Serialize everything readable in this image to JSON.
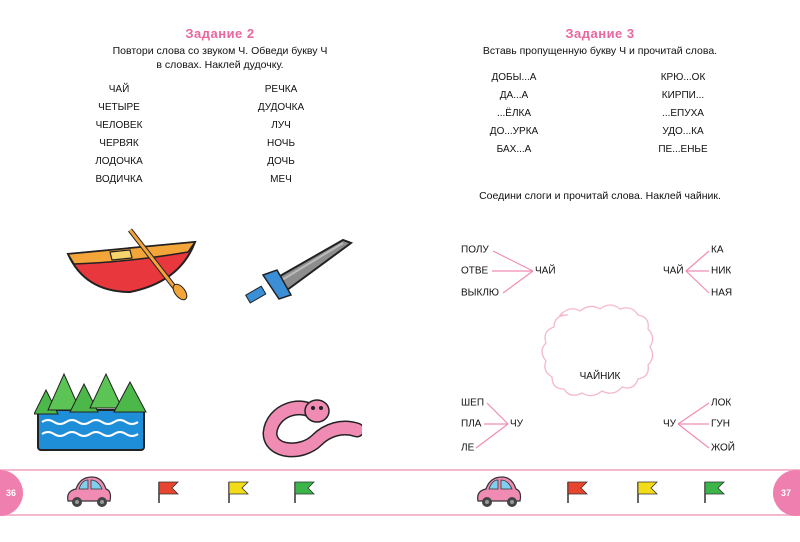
{
  "left_page": {
    "title": "Задание 2",
    "instruction_line1": "Повтори слова со звуком Ч. Обведи букву Ч",
    "instruction_line2": "в словах. Наклей дудочку.",
    "words_left": [
      "ЧАЙ",
      "ЧЕТЫРЕ",
      "ЧЕЛОВЕК",
      "ЧЕРВЯК",
      "ЛОДОЧКА",
      "ВОДИЧКА"
    ],
    "words_right": [
      "РЕЧКА",
      "ДУДОЧКА",
      "ЛУЧ",
      "НОЧЬ",
      "ДОЧЬ",
      "МЕЧ"
    ],
    "page_number": "36"
  },
  "right_page": {
    "title": "Задание 3",
    "instruction": "Вставь пропущенную букву Ч и прочитай слова.",
    "words_left": [
      "ДОБЫ...А",
      "ДА...А",
      "...ЁЛКА",
      "ДО...УРКА",
      "БАХ...А"
    ],
    "words_right": [
      "КРЮ...ОК",
      "КИРПИ...",
      "...ЕПУХА",
      "УДО...КА",
      "ПЕ...ЕНЬЕ"
    ],
    "instruction2": "Соедини слоги и прочитай слова. Наклей чайник.",
    "group1": {
      "parts": [
        "ПОЛУ",
        "ОТВЕ",
        "ВЫКЛЮ"
      ],
      "hub": "ЧАЙ"
    },
    "group2": {
      "hub": "ЧАЙ",
      "parts": [
        "КА",
        "НИК",
        "НАЯ"
      ]
    },
    "group3": {
      "parts": [
        "ШЕП",
        "ПЛА",
        "ЛЕ"
      ],
      "hub": "ЧУ"
    },
    "group4": {
      "hub": "ЧУ",
      "parts": [
        "ЛОК",
        "ГУН",
        "ЖОЙ"
      ]
    },
    "cloud_label": "ЧАЙНИК",
    "page_number": "37"
  },
  "colors": {
    "accent": "#e8679f",
    "line": "#f4b8cf",
    "flag_red": "#e8452f",
    "flag_yellow": "#f2dc1a",
    "flag_green": "#3bb54a"
  }
}
